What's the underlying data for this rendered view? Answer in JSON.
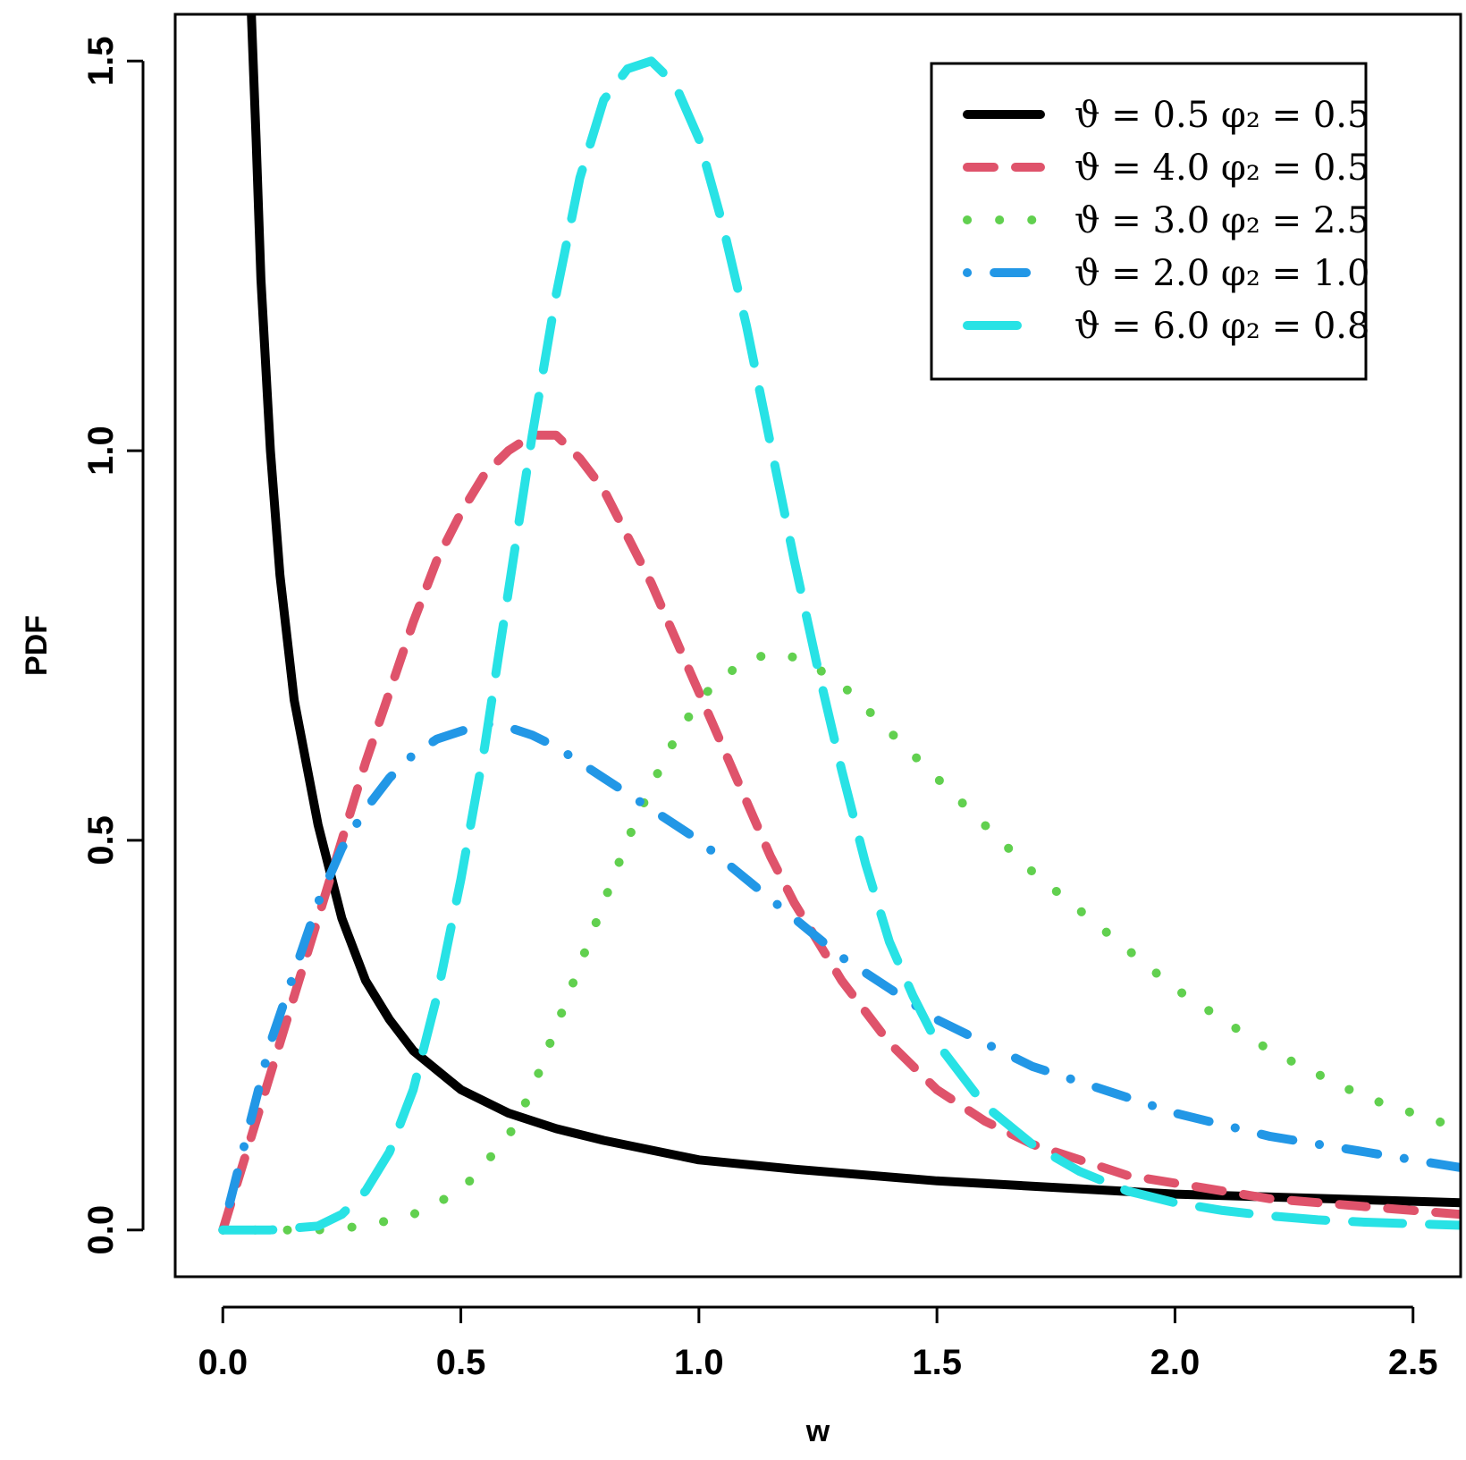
{
  "chart_data": {
    "type": "line",
    "title": "",
    "xlabel": "w",
    "ylabel": "PDF",
    "xlim": [
      -0.1,
      2.6
    ],
    "ylim": [
      -0.06,
      1.56
    ],
    "x_ticks": [
      0.0,
      0.5,
      1.0,
      1.5,
      2.0,
      2.5
    ],
    "x_tick_labels": [
      "0.0",
      "0.5",
      "1.0",
      "1.5",
      "2.0",
      "2.5"
    ],
    "y_ticks": [
      0.0,
      0.5,
      1.0,
      1.5
    ],
    "y_tick_labels": [
      "0.0",
      "0.5",
      "1.0",
      "1.5"
    ],
    "grid": false,
    "legend_position": "top-right",
    "series": [
      {
        "name": "ϑ = 0.5  φ₂ = 0.5",
        "color": "#000000",
        "style": "solid",
        "x": [
          0.06,
          0.07,
          0.08,
          0.1,
          0.12,
          0.15,
          0.2,
          0.25,
          0.3,
          0.35,
          0.4,
          0.5,
          0.6,
          0.7,
          0.8,
          1.0,
          1.2,
          1.5,
          2.0,
          2.6
        ],
        "y": [
          1.56,
          1.4,
          1.22,
          1.0,
          0.84,
          0.68,
          0.52,
          0.4,
          0.32,
          0.27,
          0.23,
          0.18,
          0.15,
          0.13,
          0.115,
          0.09,
          0.078,
          0.063,
          0.046,
          0.035
        ]
      },
      {
        "name": "ϑ = 4.0  φ₂ = 0.5",
        "color": "#DF536B",
        "style": "dashed",
        "x": [
          0.0,
          0.05,
          0.1,
          0.15,
          0.2,
          0.25,
          0.3,
          0.35,
          0.4,
          0.45,
          0.5,
          0.55,
          0.6,
          0.65,
          0.7,
          0.75,
          0.8,
          0.85,
          0.9,
          0.95,
          1.0,
          1.05,
          1.1,
          1.15,
          1.2,
          1.25,
          1.3,
          1.35,
          1.4,
          1.45,
          1.5,
          1.6,
          1.7,
          1.8,
          1.9,
          2.0,
          2.1,
          2.2,
          2.3,
          2.4,
          2.5,
          2.6
        ],
        "y": [
          0.0,
          0.1,
          0.2,
          0.3,
          0.4,
          0.5,
          0.6,
          0.69,
          0.78,
          0.86,
          0.92,
          0.97,
          1.0,
          1.02,
          1.02,
          0.99,
          0.95,
          0.89,
          0.83,
          0.76,
          0.69,
          0.62,
          0.55,
          0.48,
          0.42,
          0.37,
          0.32,
          0.28,
          0.24,
          0.21,
          0.18,
          0.14,
          0.11,
          0.09,
          0.07,
          0.06,
          0.05,
          0.04,
          0.035,
          0.03,
          0.025,
          0.02
        ]
      },
      {
        "name": "ϑ = 3.0  φ₂ = 2.5",
        "color": "#61D04F",
        "style": "dotted",
        "x": [
          0.0,
          0.2,
          0.3,
          0.4,
          0.5,
          0.6,
          0.65,
          0.7,
          0.75,
          0.8,
          0.85,
          0.9,
          0.95,
          1.0,
          1.05,
          1.1,
          1.15,
          1.2,
          1.25,
          1.3,
          1.35,
          1.4,
          1.5,
          1.6,
          1.7,
          1.8,
          1.9,
          2.0,
          2.1,
          2.2,
          2.3,
          2.4,
          2.5,
          2.6
        ],
        "y": [
          0.0,
          0.0,
          0.005,
          0.02,
          0.05,
          0.12,
          0.18,
          0.26,
          0.34,
          0.42,
          0.5,
          0.57,
          0.63,
          0.68,
          0.71,
          0.73,
          0.74,
          0.735,
          0.72,
          0.7,
          0.67,
          0.64,
          0.58,
          0.52,
          0.46,
          0.41,
          0.36,
          0.31,
          0.27,
          0.23,
          0.2,
          0.17,
          0.15,
          0.13
        ]
      },
      {
        "name": "ϑ = 2.0  φ₂ = 1.0",
        "color": "#2297E6",
        "style": "dotdash",
        "x": [
          0.0,
          0.05,
          0.1,
          0.15,
          0.2,
          0.25,
          0.3,
          0.35,
          0.4,
          0.45,
          0.5,
          0.55,
          0.6,
          0.65,
          0.7,
          0.75,
          0.8,
          0.9,
          1.0,
          1.1,
          1.2,
          1.3,
          1.4,
          1.5,
          1.6,
          1.7,
          1.8,
          1.9,
          2.0,
          2.1,
          2.2,
          2.3,
          2.4,
          2.5,
          2.6
        ],
        "y": [
          0.0,
          0.12,
          0.24,
          0.33,
          0.42,
          0.49,
          0.54,
          0.58,
          0.61,
          0.63,
          0.64,
          0.65,
          0.645,
          0.635,
          0.62,
          0.6,
          0.58,
          0.54,
          0.5,
          0.45,
          0.4,
          0.35,
          0.31,
          0.27,
          0.24,
          0.21,
          0.19,
          0.17,
          0.15,
          0.135,
          0.12,
          0.11,
          0.1,
          0.09,
          0.08
        ]
      },
      {
        "name": "ϑ = 6.0  φ₂ = 0.8",
        "color": "#28E2E5",
        "style": "longdash",
        "x": [
          0.0,
          0.1,
          0.2,
          0.25,
          0.3,
          0.35,
          0.4,
          0.45,
          0.5,
          0.55,
          0.6,
          0.65,
          0.7,
          0.75,
          0.8,
          0.85,
          0.9,
          0.95,
          1.0,
          1.05,
          1.1,
          1.15,
          1.2,
          1.25,
          1.3,
          1.35,
          1.4,
          1.45,
          1.5,
          1.55,
          1.6,
          1.7,
          1.8,
          1.9,
          2.0,
          2.1,
          2.2,
          2.3,
          2.4,
          2.5,
          2.6
        ],
        "y": [
          0.0,
          0.0,
          0.005,
          0.02,
          0.05,
          0.1,
          0.18,
          0.3,
          0.45,
          0.62,
          0.82,
          1.02,
          1.2,
          1.35,
          1.45,
          1.49,
          1.5,
          1.47,
          1.4,
          1.29,
          1.16,
          1.01,
          0.86,
          0.72,
          0.59,
          0.47,
          0.37,
          0.3,
          0.24,
          0.2,
          0.16,
          0.11,
          0.075,
          0.05,
          0.035,
          0.025,
          0.018,
          0.013,
          0.01,
          0.008,
          0.006
        ]
      }
    ]
  }
}
